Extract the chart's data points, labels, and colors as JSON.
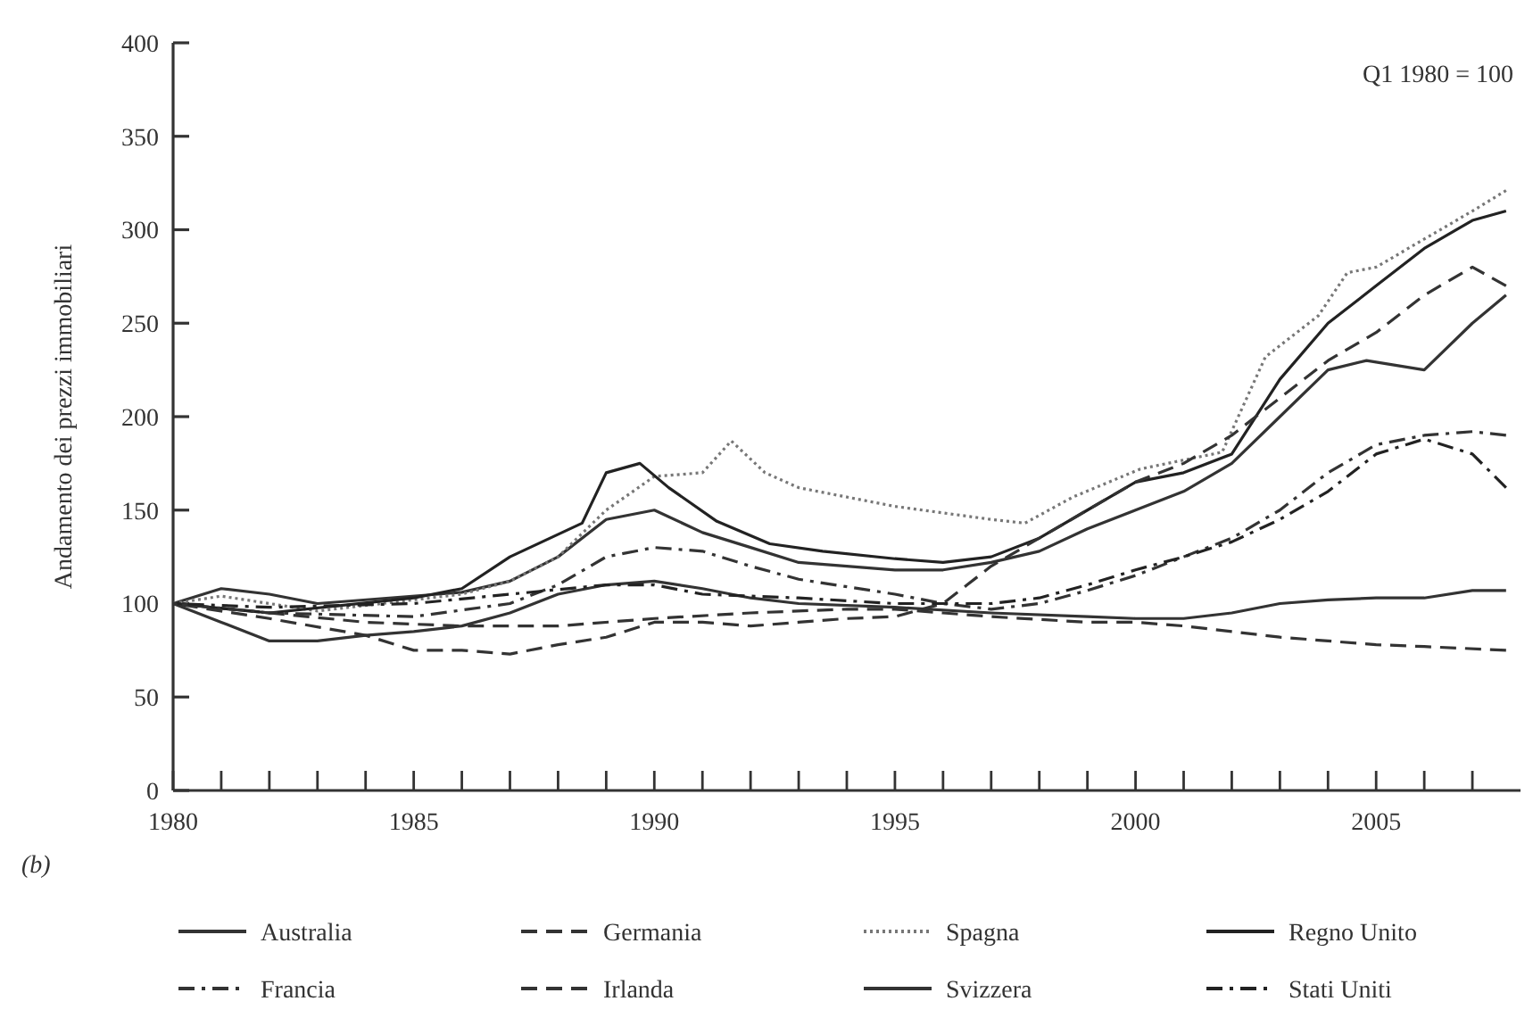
{
  "chart_data": {
    "type": "line",
    "ylabel": "Andamento dei prezzi immobiliari",
    "annotations": [
      "Q1 1980 = 100",
      "(b)"
    ],
    "xlim": [
      1980,
      2008
    ],
    "xticks": [
      1980,
      {
        "value": 1981,
        "label": null
      },
      {
        "value": 1982,
        "label": null
      },
      {
        "value": 1983,
        "label": null
      },
      {
        "value": 1984,
        "label": null
      },
      1985,
      {
        "value": 1986,
        "label": null
      },
      {
        "value": 1987,
        "label": null
      },
      {
        "value": 1988,
        "label": null
      },
      {
        "value": 1989,
        "label": null
      },
      1990,
      {
        "value": 1991,
        "label": null
      },
      {
        "value": 1992,
        "label": null
      },
      {
        "value": 1993,
        "label": null
      },
      {
        "value": 1994,
        "label": null
      },
      1995,
      {
        "value": 1996,
        "label": null
      },
      {
        "value": 1997,
        "label": null
      },
      {
        "value": 1998,
        "label": null
      },
      {
        "value": 1999,
        "label": null
      },
      2000,
      {
        "value": 2001,
        "label": null
      },
      {
        "value": 2002,
        "label": null
      },
      {
        "value": 2003,
        "label": null
      },
      {
        "value": 2004,
        "label": null
      },
      2005,
      {
        "value": 2006,
        "label": null
      },
      {
        "value": 2007,
        "label": null
      }
    ],
    "ylim": [
      0,
      400
    ],
    "yticks": [
      0,
      50,
      100,
      150,
      200,
      250,
      300,
      350,
      400
    ],
    "grid": false,
    "legend": "bottom",
    "marker": "none",
    "series": [
      {
        "name": "Australia",
        "color": "#333333",
        "line_style": "solid",
        "x": [
          1980,
          1981,
          1982,
          1983,
          1986,
          1987,
          1988,
          1989,
          1990,
          1991,
          1992,
          1993,
          1995,
          1996,
          1997,
          1998,
          1999,
          2000,
          2001,
          2002,
          2003,
          2004,
          2004.8,
          2006,
          2007,
          2007.7
        ],
        "values": [
          100,
          108,
          105,
          100,
          106,
          112,
          125,
          145,
          150,
          138,
          130,
          122,
          118,
          118,
          122,
          128,
          140,
          150,
          160,
          175,
          200,
          225,
          230,
          225,
          250,
          265
        ]
      },
      {
        "name": "Germania",
        "color": "#333333",
        "line_style": "dashed",
        "x": [
          1980,
          1982,
          1984,
          1986,
          1988,
          1990,
          1992,
          1994,
          1995,
          1996,
          1997,
          1999,
          2000,
          2001,
          2002,
          2003,
          2004,
          2005,
          2006,
          2007.7
        ],
        "values": [
          100,
          95,
          90,
          88,
          88,
          92,
          95,
          97,
          97,
          95,
          93,
          90,
          90,
          88,
          85,
          82,
          80,
          78,
          77,
          75
        ]
      },
      {
        "name": "Spagna",
        "color": "#777777",
        "line_style": "dotted",
        "x": [
          1980,
          1981,
          1983,
          1986,
          1987,
          1988,
          1989,
          1990,
          1991,
          1991.6,
          1992.3,
          1993,
          1995,
          1997,
          1997.7,
          1998.7,
          2000.1,
          2001.8,
          2002.7,
          2003.8,
          2004.4,
          2005,
          2006,
          2007,
          2007.7
        ],
        "values": [
          100,
          104,
          96,
          105,
          112,
          125,
          150,
          168,
          170,
          187,
          170,
          162,
          152,
          145,
          143,
          157,
          172,
          181,
          232,
          254,
          277,
          280,
          295,
          310,
          321
        ]
      },
      {
        "name": "Regno Unito",
        "color": "#222222",
        "line_style": "solid",
        "x": [
          1980,
          1982,
          1985,
          1986,
          1987,
          1988.5,
          1989,
          1989.7,
          1990.3,
          1991.3,
          1992.4,
          1993.5,
          1995,
          1996,
          1997,
          1998,
          1999,
          2000,
          2001,
          2002,
          2003,
          2004,
          2005,
          2006,
          2007,
          2007.7
        ],
        "values": [
          100,
          95,
          103,
          108,
          125,
          143,
          170,
          175,
          162,
          144,
          132,
          128,
          124,
          122,
          125,
          135,
          150,
          165,
          170,
          180,
          220,
          250,
          270,
          290,
          305,
          310
        ]
      },
      {
        "name": "Francia",
        "color": "#333333",
        "line_style": "dashdot",
        "x": [
          1980,
          1982,
          1985,
          1987,
          1988,
          1989,
          1990,
          1991,
          1992,
          1993,
          1995,
          1996,
          1997,
          1998,
          1999,
          2000,
          2001,
          2002,
          2003,
          2004,
          2005,
          2006,
          2007,
          2007.7
        ],
        "values": [
          100,
          95,
          93,
          100,
          110,
          125,
          130,
          128,
          120,
          113,
          105,
          100,
          97,
          100,
          107,
          115,
          125,
          135,
          150,
          170,
          185,
          190,
          192,
          190
        ]
      },
      {
        "name": "Irlanda",
        "color": "#333333",
        "line_style": "dashed",
        "x": [
          1980,
          1982,
          1984,
          1985,
          1986,
          1987,
          1988,
          1989,
          1990,
          1991,
          1992,
          1993,
          1994,
          1995,
          1996,
          1996.5,
          1997,
          1998,
          1999,
          2000,
          2001,
          2002,
          2003,
          2004,
          2005,
          2006,
          2007,
          2007.7
        ],
        "values": [
          100,
          92,
          83,
          75,
          75,
          73,
          78,
          82,
          90,
          90,
          88,
          90,
          92,
          93,
          100,
          110,
          120,
          135,
          150,
          165,
          175,
          190,
          210,
          230,
          245,
          265,
          280,
          270
        ]
      },
      {
        "name": "Svizzera",
        "color": "#333333",
        "line_style": "solid",
        "x": [
          1980,
          1981,
          1982,
          1983,
          1984,
          1985,
          1986,
          1987,
          1988,
          1989,
          1990,
          1991,
          1992,
          1993,
          1995,
          1997,
          1999,
          2000,
          2001,
          2002,
          2003,
          2004,
          2005,
          2006,
          2007,
          2007.7
        ],
        "values": [
          100,
          90,
          80,
          80,
          83,
          85,
          88,
          95,
          105,
          110,
          112,
          108,
          103,
          100,
          98,
          95,
          93,
          92,
          92,
          95,
          100,
          102,
          103,
          103,
          107,
          107
        ]
      },
      {
        "name": "Stati Uniti",
        "color": "#222222",
        "line_style": "dashdot",
        "x": [
          1980,
          1982,
          1985,
          1987,
          1989,
          1990,
          1991,
          1993,
          1995,
          1997,
          1998,
          1999,
          2000,
          2001,
          2002,
          2003,
          2004,
          2005,
          2006,
          2007,
          2007.7
        ],
        "values": [
          100,
          98,
          100,
          105,
          110,
          110,
          105,
          103,
          100,
          100,
          103,
          110,
          118,
          125,
          133,
          145,
          160,
          180,
          188,
          180,
          162
        ]
      }
    ]
  }
}
